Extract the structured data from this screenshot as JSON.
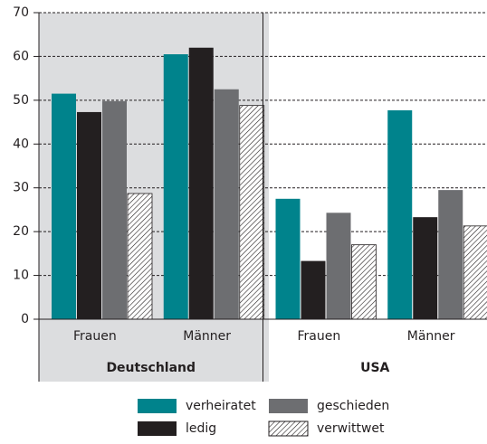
{
  "chart_data": {
    "type": "bar",
    "categories": [
      "Frauen",
      "Männer",
      "Frauen",
      "Männer"
    ],
    "group_labels": [
      "Deutschland",
      "USA"
    ],
    "series": [
      {
        "name": "verheiratet",
        "color": "#00838c",
        "values": [
          51.5,
          60.5,
          27.5,
          47.7
        ]
      },
      {
        "name": "ledig",
        "color": "#231f20",
        "values": [
          47.3,
          62,
          13.3,
          23.3
        ]
      },
      {
        "name": "geschieden",
        "color": "#6d6e71",
        "values": [
          49.8,
          52.5,
          24.3,
          29.5
        ]
      },
      {
        "name": "verwittwet",
        "color": "#231f20",
        "pattern": "hatch",
        "values": [
          28.7,
          48.8,
          17,
          21.3
        ]
      }
    ],
    "ylim": [
      0,
      70
    ],
    "yticks": [
      0,
      10,
      20,
      30,
      40,
      50,
      60,
      70
    ],
    "grid": true
  }
}
